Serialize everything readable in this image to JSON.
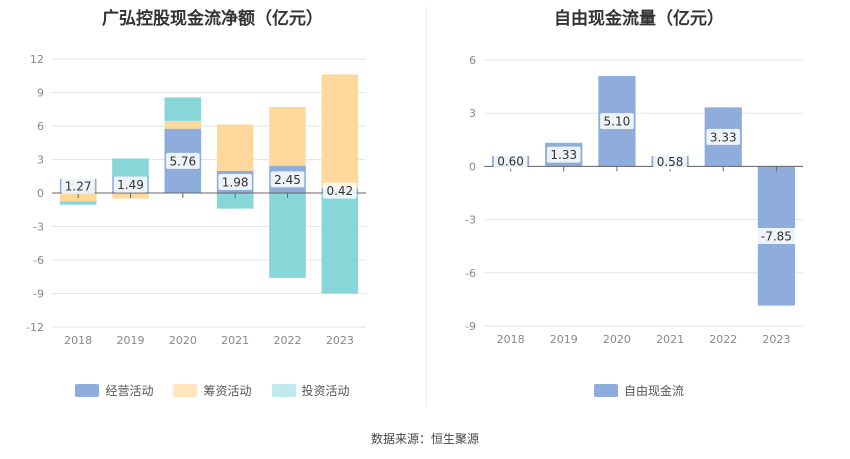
{
  "colors": {
    "operating": "#8eaddc",
    "financing": "#ffd89c",
    "investing": "#88d6d8",
    "financing_legend": "#ffe6bf",
    "investing_legend": "#bfe9ea",
    "fcf": "#8eaddc",
    "grid": "#e6e6e6",
    "axis": "#666666"
  },
  "source_text": "数据来源：恒生聚源",
  "chart_data": [
    {
      "type": "bar",
      "stacked": true,
      "title": "广弘控股现金流净额（亿元）",
      "categories": [
        "2018",
        "2019",
        "2020",
        "2021",
        "2022",
        "2023"
      ],
      "ylim": [
        -12,
        12
      ],
      "yticks": [
        12,
        9,
        6,
        3,
        0,
        -3,
        -6,
        -9,
        -12
      ],
      "grid": true,
      "legend_position": "bottom",
      "series": [
        {
          "name": "经营活动",
          "color_key": "operating",
          "values": [
            1.27,
            1.49,
            5.76,
            1.98,
            2.45,
            0.42
          ],
          "labels": [
            "1.27",
            "1.49",
            "5.76",
            "1.98",
            "2.45",
            "0.42"
          ]
        },
        {
          "name": "筹资活动",
          "color_key": "financing",
          "values": [
            -0.75,
            -0.5,
            0.7,
            4.15,
            5.25,
            10.2
          ]
        },
        {
          "name": "投资活动",
          "color_key": "investing",
          "values": [
            -0.3,
            1.6,
            2.1,
            -1.4,
            -7.6,
            -9.0
          ]
        }
      ]
    },
    {
      "type": "bar",
      "title": "自由现金流量（亿元）",
      "categories": [
        "2018",
        "2019",
        "2020",
        "2021",
        "2022",
        "2023"
      ],
      "ylim": [
        -9,
        6
      ],
      "yticks": [
        6,
        3,
        0,
        -3,
        -6,
        -9
      ],
      "grid": true,
      "legend_position": "bottom",
      "series": [
        {
          "name": "自由现金流",
          "color_key": "fcf",
          "values": [
            0.6,
            1.33,
            5.1,
            0.58,
            3.33,
            -7.85
          ],
          "labels": [
            "0.60",
            "1.33",
            "5.10",
            "0.58",
            "3.33",
            "-7.85"
          ]
        }
      ]
    }
  ]
}
